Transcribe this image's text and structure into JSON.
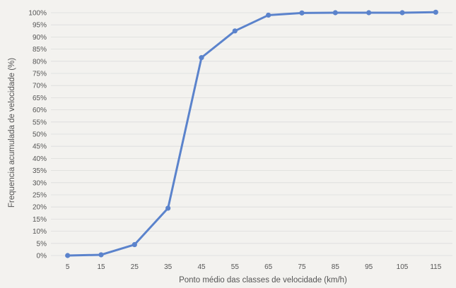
{
  "chart_data": {
    "type": "line",
    "title": "",
    "xlabel": "Ponto médio das classes de velocidade (km/h)",
    "ylabel": "Frequencia acumulada de velocidade (%)",
    "categories": [
      "5",
      "15",
      "25",
      "35",
      "45",
      "55",
      "65",
      "75",
      "85",
      "95",
      "105",
      "115"
    ],
    "series": [
      {
        "values": [
          0,
          0.3,
          4.5,
          19.5,
          81.5,
          92.5,
          99,
          99.9,
          100,
          100,
          100,
          100.2
        ]
      }
    ],
    "ylim": [
      0,
      100
    ],
    "yticks": [
      "0%",
      "5%",
      "10%",
      "15%",
      "20%",
      "25%",
      "30%",
      "35%",
      "40%",
      "45%",
      "50%",
      "55%",
      "60%",
      "65%",
      "70%",
      "75%",
      "80%",
      "85%",
      "90%",
      "95%",
      "100%"
    ],
    "grid": true,
    "legend": "none",
    "colors": {
      "line": "#5b83cc",
      "marker": "#5b83cc",
      "grid": "#dcdcdc",
      "text": "#555555"
    }
  }
}
